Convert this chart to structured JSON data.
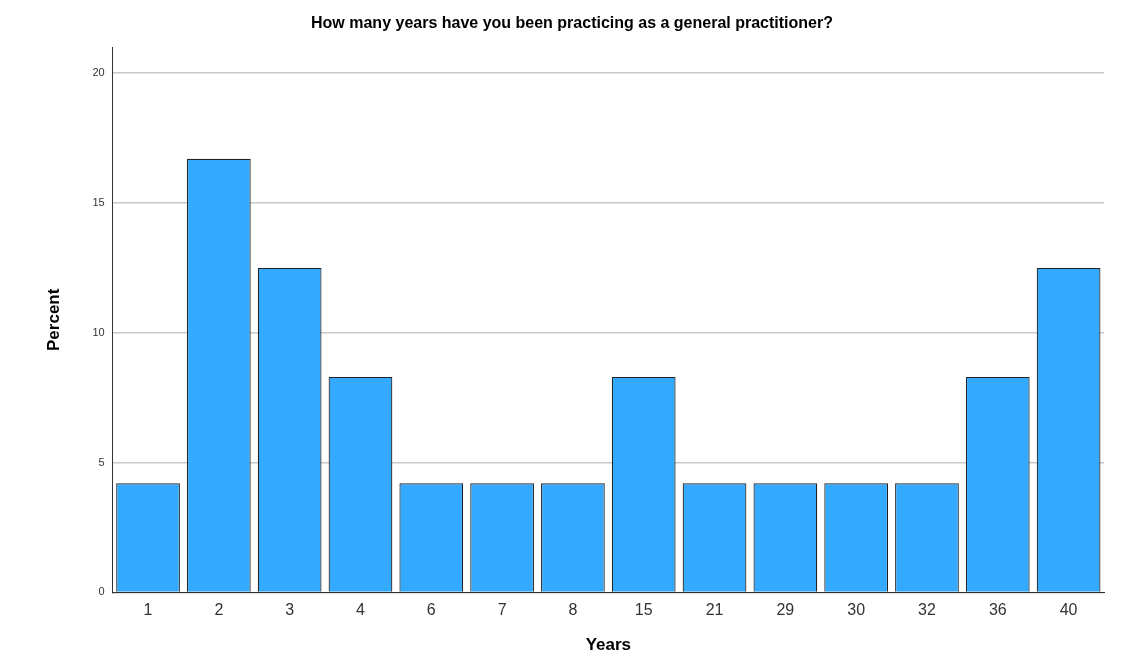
{
  "chart_data": {
    "type": "bar",
    "title": "How many years have you been practicing as a general practitioner?",
    "xlabel": "Years",
    "ylabel": "Percent",
    "categories": [
      "1",
      "2",
      "3",
      "4",
      "6",
      "7",
      "8",
      "15",
      "21",
      "29",
      "30",
      "32",
      "36",
      "40"
    ],
    "values": [
      4.2,
      16.7,
      12.5,
      8.3,
      4.2,
      4.2,
      4.2,
      8.3,
      4.2,
      4.2,
      4.2,
      4.2,
      8.3,
      12.5
    ],
    "color": "#33aaff",
    "ylim": [
      0,
      21
    ],
    "yticks": [
      0,
      5,
      10,
      15,
      20
    ],
    "grid": "y",
    "legend": false
  }
}
